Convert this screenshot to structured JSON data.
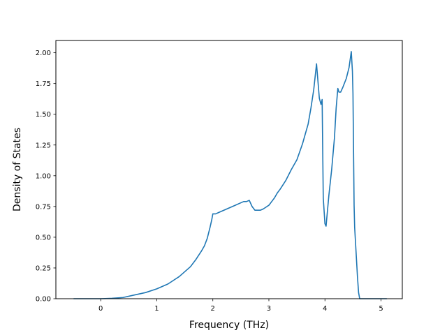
{
  "chart_data": {
    "type": "line",
    "title": "",
    "xlabel": "Frequency (THz)",
    "ylabel": "Density of States",
    "xlim": [
      -0.8,
      5.38
    ],
    "ylim": [
      0.0,
      2.1
    ],
    "grid": false,
    "line_color": "#1f77b4",
    "x_ticks": [
      {
        "value": 0,
        "label": "0"
      },
      {
        "value": 1,
        "label": "1"
      },
      {
        "value": 2,
        "label": "2"
      },
      {
        "value": 3,
        "label": "3"
      },
      {
        "value": 4,
        "label": "4"
      },
      {
        "value": 5,
        "label": "5"
      }
    ],
    "y_ticks": [
      {
        "value": 0.0,
        "label": "0.00"
      },
      {
        "value": 0.25,
        "label": "0.25"
      },
      {
        "value": 0.5,
        "label": "0.50"
      },
      {
        "value": 0.75,
        "label": "0.75"
      },
      {
        "value": 1.0,
        "label": "1.00"
      },
      {
        "value": 1.25,
        "label": "1.25"
      },
      {
        "value": 1.5,
        "label": "1.50"
      },
      {
        "value": 1.75,
        "label": "1.75"
      },
      {
        "value": 2.0,
        "label": "2.00"
      }
    ],
    "series": [
      {
        "x": [
          -0.48,
          0.0,
          0.2,
          0.4,
          0.6,
          0.8,
          1.0,
          1.2,
          1.4,
          1.6,
          1.7,
          1.8,
          1.85,
          1.9,
          1.95,
          1.98,
          2.0,
          2.05,
          2.1,
          2.2,
          2.3,
          2.4,
          2.5,
          2.55,
          2.6,
          2.65,
          2.7,
          2.75,
          2.8,
          2.85,
          2.9,
          3.0,
          3.05,
          3.1,
          3.15,
          3.2,
          3.3,
          3.4,
          3.5,
          3.6,
          3.65,
          3.7,
          3.75,
          3.8,
          3.85,
          3.9,
          3.93,
          3.95,
          3.97,
          4.0,
          4.02,
          4.07,
          4.12,
          4.17,
          4.2,
          4.23,
          4.25,
          4.28,
          4.32,
          4.38,
          4.43,
          4.47,
          4.49,
          4.5,
          4.52,
          4.53,
          4.55,
          4.58,
          4.6,
          4.62,
          4.63,
          4.66,
          4.7,
          4.8,
          5.0,
          5.1
        ],
        "y": [
          0.0,
          0.0,
          0.003,
          0.01,
          0.03,
          0.05,
          0.08,
          0.12,
          0.18,
          0.26,
          0.32,
          0.39,
          0.43,
          0.49,
          0.58,
          0.64,
          0.69,
          0.69,
          0.7,
          0.72,
          0.74,
          0.76,
          0.78,
          0.79,
          0.79,
          0.8,
          0.75,
          0.72,
          0.72,
          0.72,
          0.73,
          0.76,
          0.79,
          0.82,
          0.86,
          0.89,
          0.96,
          1.05,
          1.13,
          1.26,
          1.34,
          1.42,
          1.55,
          1.7,
          1.91,
          1.63,
          1.58,
          1.62,
          0.82,
          0.61,
          0.59,
          0.84,
          1.05,
          1.31,
          1.55,
          1.71,
          1.68,
          1.68,
          1.72,
          1.79,
          1.88,
          2.01,
          1.85,
          1.67,
          0.76,
          0.58,
          0.42,
          0.18,
          0.05,
          0.0,
          0.0,
          0.0,
          0.0,
          0.0,
          0.0,
          0.0
        ]
      }
    ]
  }
}
